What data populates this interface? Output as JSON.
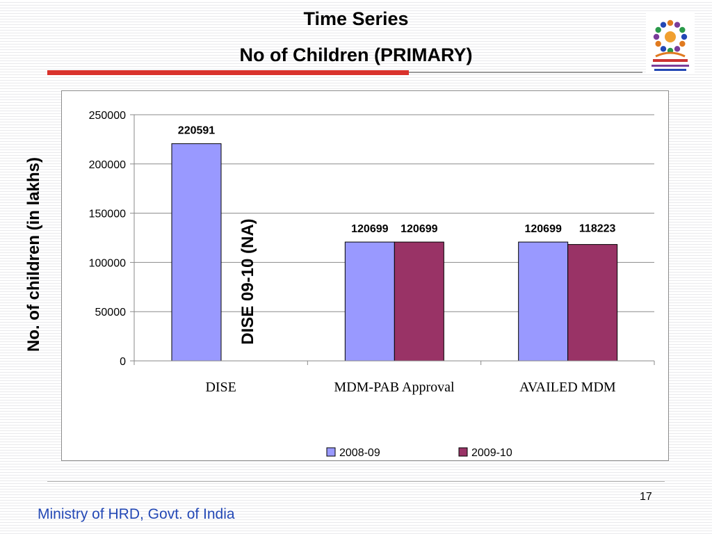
{
  "slide": {
    "title_line1": "Time Series",
    "title_line2": "No of Children (PRIMARY)",
    "page_number": "17",
    "footer": "Ministry of HRD, Govt. of India"
  },
  "colors": {
    "series_2008_09": "#9999ff",
    "series_2009_10": "#993366",
    "accent_line": "#d9322c",
    "footer_text": "#2348b5"
  },
  "chart_data": {
    "type": "bar",
    "categories": [
      "DISE",
      "MDM-PAB Approval",
      "AVAILED MDM"
    ],
    "series": [
      {
        "name": "2008-09",
        "values": [
          220591,
          120699,
          120699
        ]
      },
      {
        "name": "2009-10",
        "values": [
          null,
          120699,
          118223
        ]
      }
    ],
    "ylabel": "No. of children (in lakhs)",
    "ylim": [
      0,
      250000
    ],
    "yticks": [
      0,
      50000,
      100000,
      150000,
      200000,
      250000
    ],
    "grid": true,
    "legend": "bottom",
    "annotation": "DISE 09-10  (NA)"
  }
}
